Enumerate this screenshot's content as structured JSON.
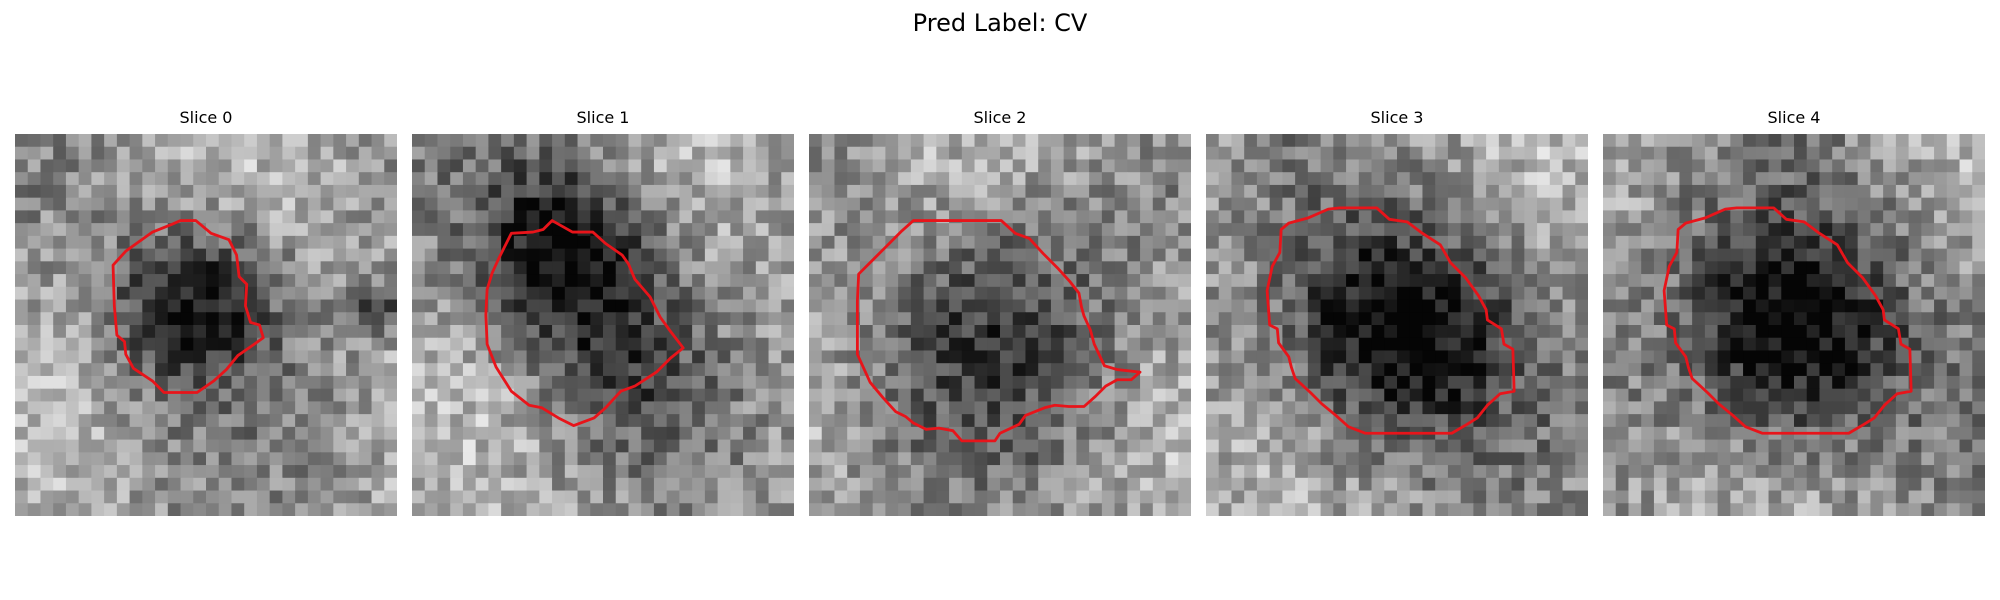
{
  "figure": {
    "title": "Pred Label: CV"
  },
  "slices": [
    {
      "title": "Slice 0",
      "seed": 11,
      "dark": [
        [
          0.47,
          0.45,
          0.2,
          0.55
        ],
        [
          0.95,
          0.47,
          0.06,
          0.4
        ]
      ]
    },
    {
      "title": "Slice 1",
      "seed": 23,
      "dark": [
        [
          0.4,
          0.3,
          0.22,
          0.6
        ],
        [
          0.55,
          0.6,
          0.2,
          0.3
        ]
      ]
    },
    {
      "title": "Slice 2",
      "seed": 37,
      "dark": [
        [
          0.5,
          0.5,
          0.3,
          0.35
        ]
      ]
    },
    {
      "title": "Slice 3",
      "seed": 41,
      "dark": [
        [
          0.5,
          0.52,
          0.28,
          0.7
        ]
      ]
    },
    {
      "title": "Slice 4",
      "seed": 59,
      "dark": [
        [
          0.5,
          0.52,
          0.28,
          0.7
        ]
      ]
    }
  ]
}
